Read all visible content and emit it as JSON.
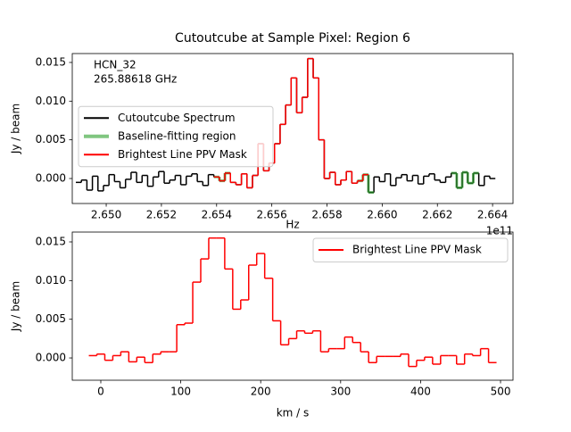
{
  "chart_data": [
    {
      "type": "step",
      "title": "Cutoutcube at Sample Pixel: Region 6",
      "xlabel": "Hz",
      "ylabel": "Jy / beam",
      "x_offset_label": "1e11",
      "annotations": [
        "HCN_32",
        "265.88618 GHz"
      ],
      "legend": "center left",
      "xlim": [
        2.64877,
        2.66474
      ],
      "ylim": [
        -0.00323,
        0.01615
      ],
      "xticks": [
        {
          "value": 2.65,
          "label": "2.650"
        },
        {
          "value": 2.652,
          "label": "2.652"
        },
        {
          "value": 2.654,
          "label": "2.654"
        },
        {
          "value": 2.656,
          "label": "2.656"
        },
        {
          "value": 2.658,
          "label": "2.658"
        },
        {
          "value": 2.66,
          "label": "2.660"
        },
        {
          "value": 2.662,
          "label": "2.662"
        },
        {
          "value": 2.664,
          "label": "2.664"
        }
      ],
      "yticks": [
        {
          "value": 0,
          "label": "0.000"
        },
        {
          "value": 0.005,
          "label": "0.005"
        },
        {
          "value": 0.01,
          "label": "0.010"
        },
        {
          "value": 0.015,
          "label": "0.015"
        }
      ],
      "x": [
        2.649,
        2.6492,
        2.6494,
        2.6496,
        2.6498,
        2.65,
        2.6502,
        2.6504,
        2.6506,
        2.6508,
        2.651,
        2.6512,
        2.6514,
        2.6516,
        2.6518,
        2.652,
        2.6522,
        2.6524,
        2.6526,
        2.6528,
        2.653,
        2.6532,
        2.6534,
        2.6536,
        2.6538,
        2.654,
        2.6542,
        2.6544,
        2.6546,
        2.6548,
        2.655,
        2.6552,
        2.6554,
        2.6556,
        2.6558,
        2.656,
        2.6562,
        2.6564,
        2.6566,
        2.6568,
        2.657,
        2.6572,
        2.6574,
        2.6576,
        2.6578,
        2.658,
        2.6582,
        2.6584,
        2.6586,
        2.6588,
        2.659,
        2.6592,
        2.6594,
        2.6596,
        2.6598,
        2.66,
        2.6602,
        2.6604,
        2.6606,
        2.6608,
        2.661,
        2.6612,
        2.6614,
        2.6616,
        2.6618,
        2.662,
        2.6622,
        2.6624,
        2.6626,
        2.6628,
        2.663,
        2.6632,
        2.6634,
        2.6636,
        2.6638,
        2.664
      ],
      "series": [
        {
          "name": "Cutoutcube Spectrum",
          "color": "#000000",
          "linewidth": 1.5,
          "values": [
            -0.0005,
            -0.0002,
            -0.0015,
            0.0003,
            -0.0016,
            -0.0009,
            0.0005,
            -0.0004,
            -0.0012,
            -0.0001,
            0.0008,
            -0.0005,
            0.0004,
            -0.001,
            0.0002,
            0.0009,
            -0.0006,
            -0.0002,
            0.0004,
            -0.0008,
            0.0003,
            0.0006,
            -0.0004,
            -0.0009,
            0.0005,
            0.0002,
            -0.0003,
            0.0007,
            -0.0005,
            -0.0008,
            0.0006,
            -0.0012,
            0.0004,
            0.0045,
            0.001,
            0.002,
            0.0045,
            0.007,
            0.0095,
            0.013,
            0.0085,
            0.0105,
            0.0155,
            0.013,
            0.005,
            0,
            0.0008,
            -0.0008,
            -0.0002,
            0.0009,
            -0.0006,
            -0.0003,
            0.0005,
            -0.0018,
            0.0002,
            -0.0004,
            0.0006,
            -0.0009,
            0.0001,
            0.0005,
            -0.0003,
            0.0004,
            -0.0007,
            0.0003,
            0.0006,
            -0.0002,
            -0.0005,
            0.0002,
            0.0007,
            -0.0012,
            0.0008,
            -0.0006,
            0.0007,
            -0.0009,
            0.0003,
            0
          ]
        },
        {
          "name": "Baseline-fitting region",
          "color": "#2ca02c",
          "opacity": 0.6,
          "linewidth": 3,
          "values": [
            null,
            null,
            null,
            null,
            null,
            null,
            null,
            null,
            null,
            null,
            null,
            null,
            null,
            null,
            null,
            null,
            null,
            null,
            null,
            null,
            null,
            null,
            null,
            null,
            null,
            0.0002,
            -0.0003,
            0.0007,
            null,
            null,
            null,
            null,
            null,
            null,
            null,
            null,
            null,
            null,
            null,
            null,
            null,
            null,
            null,
            null,
            null,
            null,
            null,
            null,
            null,
            null,
            null,
            -0.0003,
            0.0005,
            -0.0018,
            null,
            null,
            null,
            null,
            null,
            null,
            null,
            null,
            null,
            null,
            null,
            null,
            null,
            null,
            0.0007,
            -0.0012,
            0.0008,
            -0.0006,
            0.0007,
            null,
            null,
            null
          ]
        },
        {
          "name": "Brightest Line PPV Mask",
          "color": "#ff0000",
          "linewidth": 1.5,
          "values": [
            null,
            null,
            null,
            null,
            null,
            null,
            null,
            null,
            null,
            null,
            null,
            null,
            null,
            null,
            null,
            null,
            null,
            null,
            null,
            null,
            null,
            null,
            null,
            null,
            null,
            0.0002,
            -0.0003,
            0.0007,
            -0.0005,
            -0.0008,
            0.0006,
            -0.0012,
            0.0004,
            0.0045,
            0.001,
            0.002,
            0.0045,
            0.007,
            0.0095,
            0.013,
            0.0085,
            0.0105,
            0.0155,
            0.013,
            0.005,
            0,
            0.0008,
            -0.0008,
            -0.0002,
            0.0009,
            -0.0006,
            -0.0003,
            0.0005,
            null,
            null,
            null,
            null,
            null,
            null,
            null,
            null,
            null,
            null,
            null,
            null,
            null,
            null,
            null,
            null,
            null,
            null,
            null,
            null,
            null,
            null,
            null
          ]
        }
      ]
    },
    {
      "type": "step",
      "xlabel": "km / s",
      "ylabel": "Jy / beam",
      "legend": "upper right",
      "xlim": [
        -35.7,
        515.6
      ],
      "ylim": [
        -0.00288,
        0.01627
      ],
      "xticks": [
        0,
        100,
        200,
        300,
        400,
        500
      ],
      "yticks": [
        {
          "value": 0,
          "label": "0.000"
        },
        {
          "value": 0.005,
          "label": "0.005"
        },
        {
          "value": 0.01,
          "label": "0.010"
        },
        {
          "value": 0.015,
          "label": "0.015"
        }
      ],
      "x": [
        -10,
        0,
        10,
        20,
        30,
        40,
        50,
        60,
        70,
        80,
        90,
        100,
        110,
        120,
        130,
        140,
        150,
        160,
        170,
        180,
        190,
        200,
        210,
        220,
        230,
        240,
        250,
        260,
        270,
        280,
        290,
        300,
        310,
        320,
        330,
        340,
        350,
        360,
        370,
        380,
        390,
        400,
        410,
        420,
        430,
        440,
        450,
        460,
        470,
        480,
        490
      ],
      "series": [
        {
          "name": "Brightest Line PPV Mask",
          "color": "#ff0000",
          "linewidth": 1.5,
          "values": [
            0.0003,
            0.0005,
            -0.0003,
            0.0003,
            0.0008,
            -0.0005,
            0.0001,
            -0.0006,
            0.0005,
            0.0008,
            0.0008,
            0.0043,
            0.0045,
            0.0098,
            0.0128,
            0.0155,
            0.0155,
            0.0115,
            0.0063,
            0.0075,
            0.012,
            0.0135,
            0.0103,
            0.0048,
            0.0017,
            0.0025,
            0.0035,
            0.0032,
            0.0035,
            0.0008,
            0.0012,
            0.0012,
            0.0027,
            0.002,
            0.0008,
            -0.0006,
            0.0002,
            0.0002,
            0.0002,
            0.0005,
            -0.0011,
            -0.0003,
            0.0001,
            -0.0008,
            0.0003,
            0.0003,
            -0.0008,
            0.0005,
            0.0003,
            0.0012,
            -0.0006
          ]
        }
      ]
    }
  ]
}
